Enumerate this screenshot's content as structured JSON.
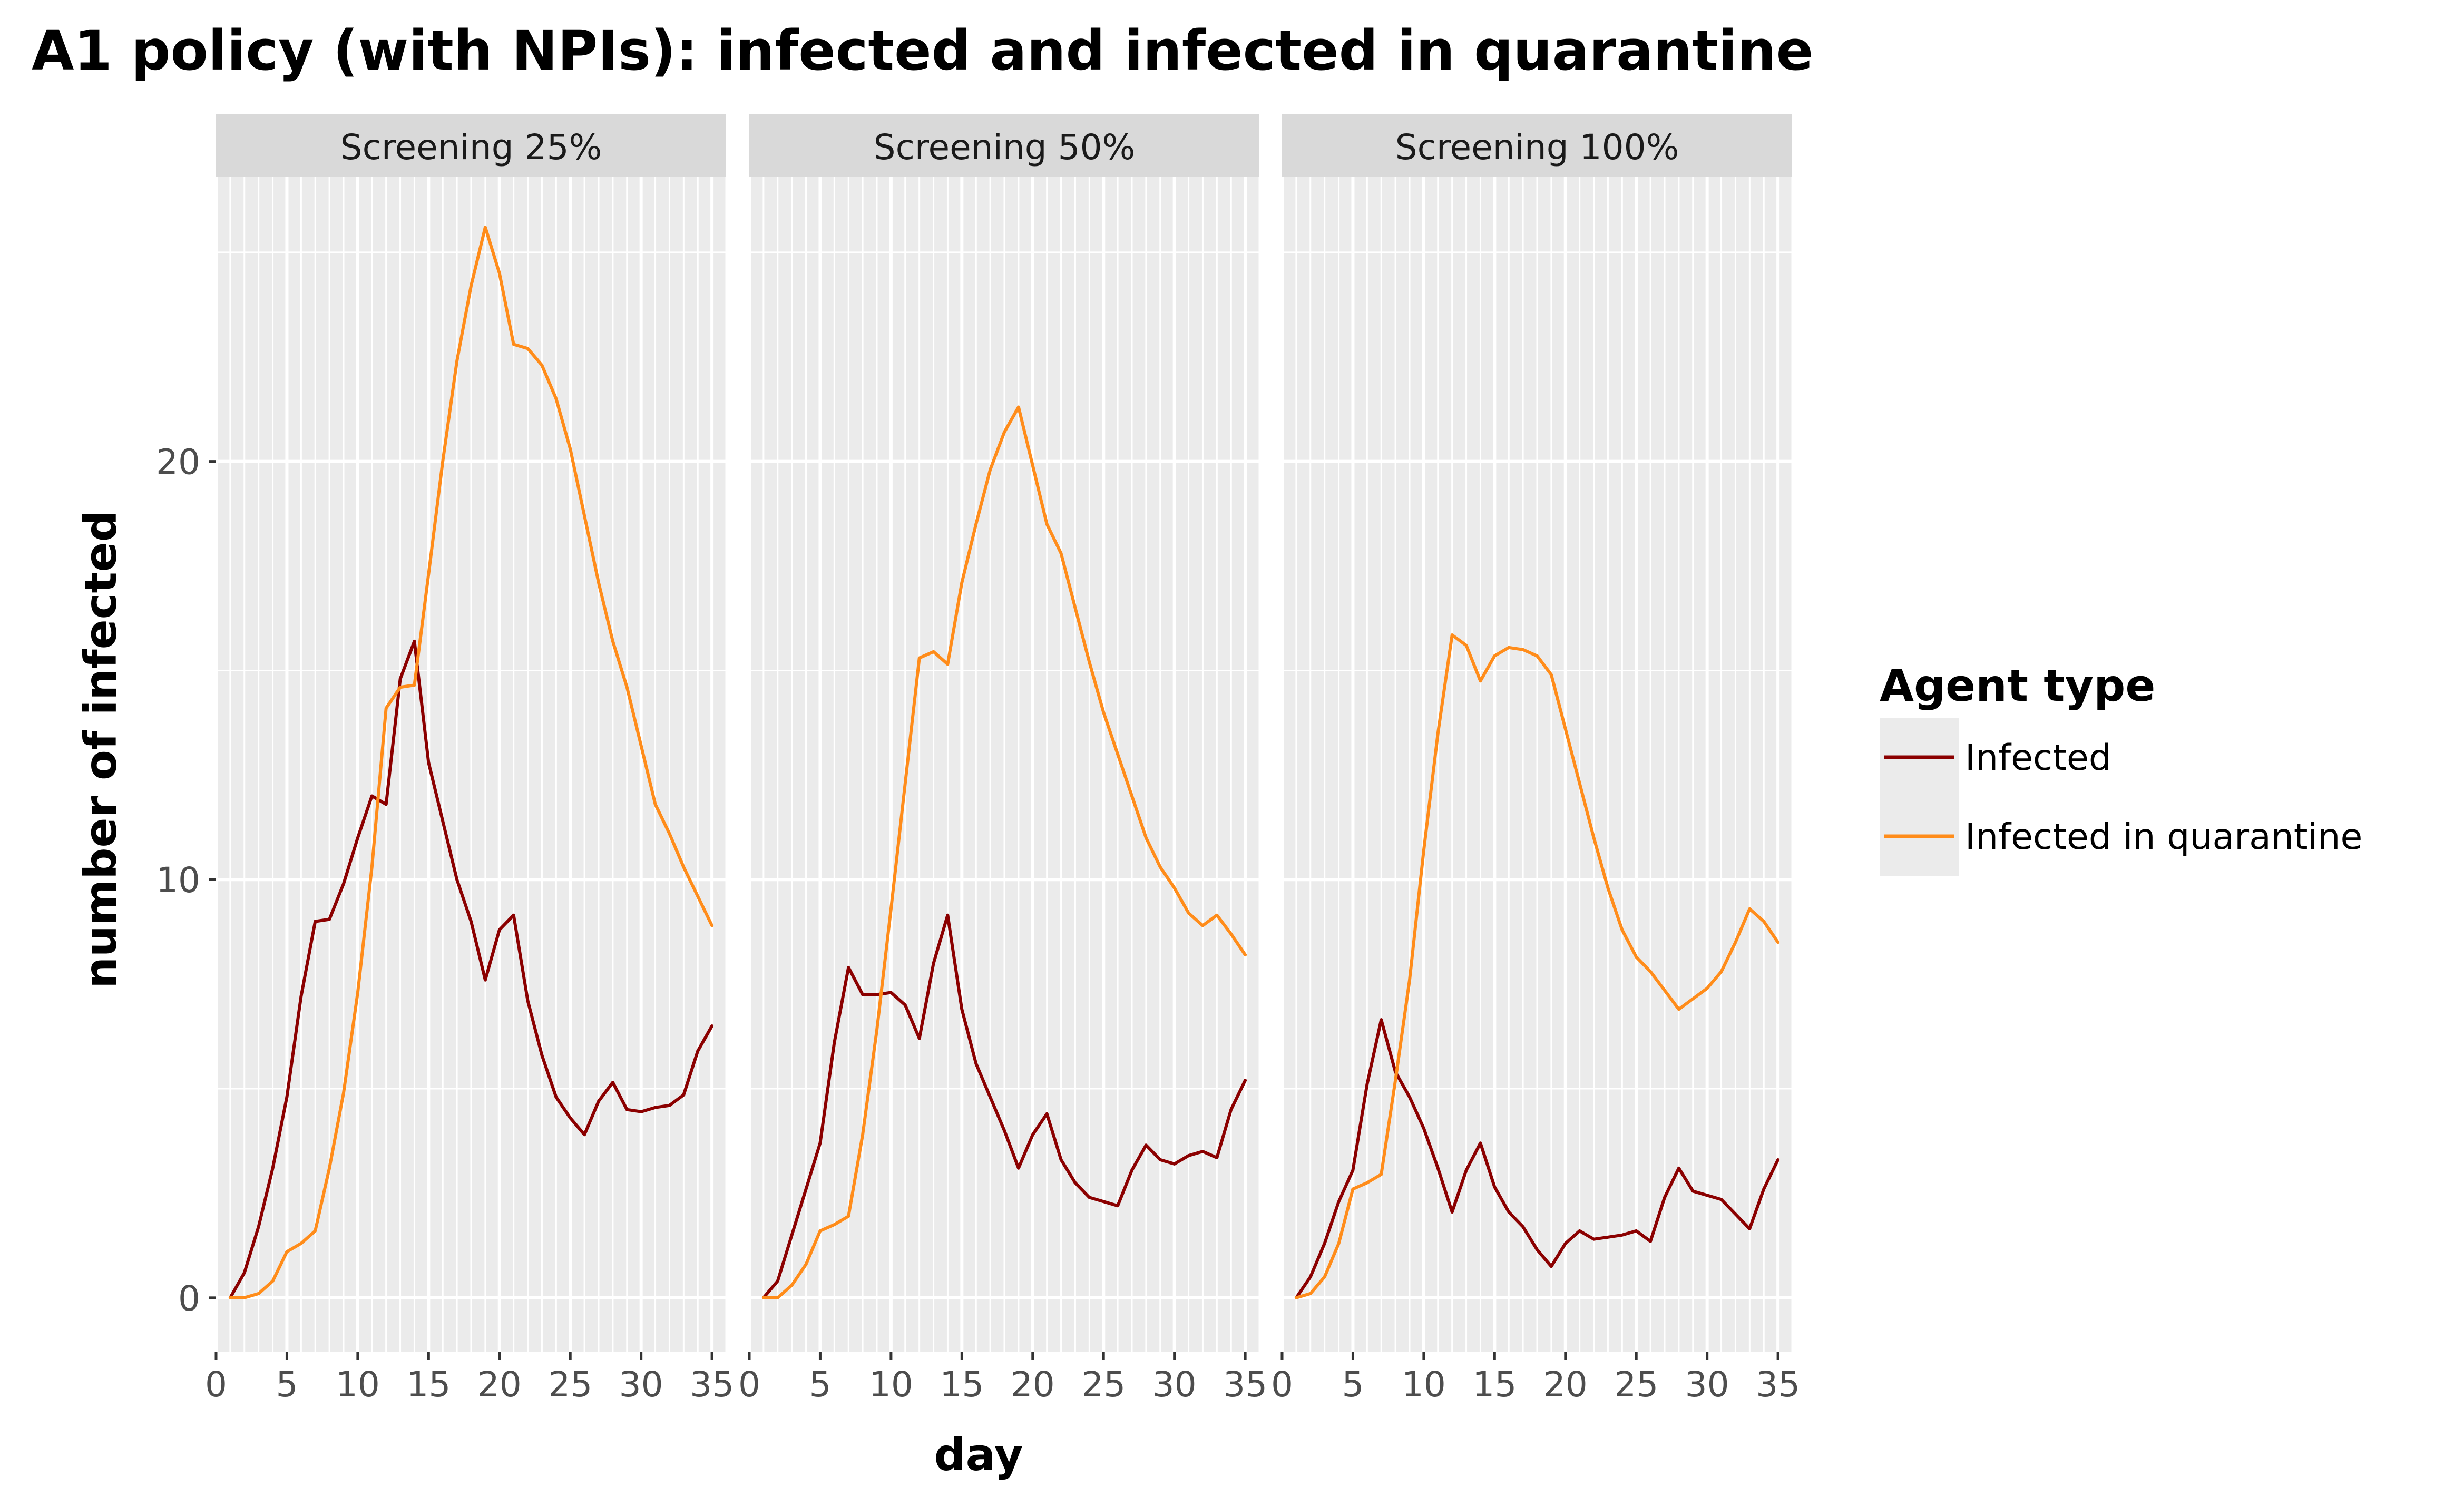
{
  "chart_data": {
    "type": "line",
    "title": "A1 policy (with NPIs): infected and infected in quarantine",
    "xlabel": "day",
    "ylabel": "number of infected",
    "xlim": [
      0,
      36
    ],
    "ylim": [
      -1.3,
      26.8
    ],
    "x_ticks": [
      0,
      5,
      10,
      15,
      20,
      25,
      30,
      35
    ],
    "y_ticks": [
      0,
      10,
      20
    ],
    "grid": true,
    "legend": {
      "title": "Agent type",
      "position": "right",
      "entries": [
        {
          "label": "Infected",
          "color": "#8b0000"
        },
        {
          "label": "Infected in quarantine",
          "color": "#ff8c1a"
        }
      ]
    },
    "panels": [
      {
        "label": "Screening 25%",
        "series": [
          {
            "name": "Infected",
            "color": "#8b0000",
            "x": [
              1,
              2,
              3,
              4,
              5,
              6,
              7,
              8,
              9,
              10,
              11,
              12,
              13,
              14,
              15,
              16,
              17,
              18,
              19,
              20,
              21,
              22,
              23,
              24,
              25,
              26,
              27,
              28,
              29,
              30,
              31,
              32,
              33,
              34,
              35
            ],
            "y": [
              0,
              0.6,
              1.7,
              3.1,
              4.8,
              7.2,
              9,
              9.05,
              9.9,
              11,
              12,
              11.8,
              14.8,
              15.7,
              12.8,
              11.4,
              10,
              9,
              7.6,
              8.8,
              9.15,
              7.1,
              5.8,
              4.8,
              4.3,
              3.9,
              4.7,
              5.15,
              4.5,
              4.45,
              4.55,
              4.6,
              4.85,
              5.9,
              6.5
            ]
          },
          {
            "name": "Infected in quarantine",
            "color": "#ff8c1a",
            "x": [
              1,
              2,
              3,
              4,
              5,
              6,
              7,
              8,
              9,
              10,
              11,
              12,
              13,
              14,
              15,
              16,
              17,
              18,
              19,
              20,
              21,
              22,
              23,
              24,
              25,
              26,
              27,
              28,
              29,
              30,
              31,
              32,
              33,
              34,
              35
            ],
            "y": [
              0,
              0,
              0.1,
              0.4,
              1.1,
              1.3,
              1.6,
              3.1,
              4.9,
              7.3,
              10.3,
              14.1,
              14.6,
              14.65,
              17.3,
              20,
              22.4,
              24.2,
              25.6,
              24.5,
              22.8,
              22.7,
              22.3,
              21.5,
              20.3,
              18.7,
              17.1,
              15.7,
              14.6,
              13.2,
              11.8,
              11.1,
              10.3,
              9.6,
              8.9
            ]
          }
        ]
      },
      {
        "label": "Screening 50%",
        "series": [
          {
            "name": "Infected",
            "color": "#8b0000",
            "x": [
              1,
              2,
              3,
              4,
              5,
              6,
              7,
              8,
              9,
              10,
              11,
              12,
              13,
              14,
              15,
              16,
              17,
              18,
              19,
              20,
              21,
              22,
              23,
              24,
              25,
              26,
              27,
              28,
              29,
              30,
              31,
              32,
              33,
              34,
              35
            ],
            "y": [
              0,
              0.4,
              1.5,
              2.6,
              3.7,
              6.1,
              7.9,
              7.25,
              7.25,
              7.3,
              7,
              6.2,
              8,
              9.15,
              6.9,
              5.6,
              4.8,
              4,
              3.1,
              3.9,
              4.4,
              3.3,
              2.75,
              2.4,
              2.3,
              2.2,
              3.05,
              3.65,
              3.3,
              3.2,
              3.4,
              3.5,
              3.35,
              4.5,
              5.2
            ]
          },
          {
            "name": "Infected in quarantine",
            "color": "#ff8c1a",
            "x": [
              1,
              2,
              3,
              4,
              5,
              6,
              7,
              8,
              9,
              10,
              11,
              12,
              13,
              14,
              15,
              16,
              17,
              18,
              19,
              20,
              21,
              22,
              23,
              24,
              25,
              26,
              27,
              28,
              29,
              30,
              31,
              32,
              33,
              34,
              35
            ],
            "y": [
              0,
              0,
              0.3,
              0.8,
              1.6,
              1.75,
              1.95,
              3.9,
              6.4,
              9.3,
              12.3,
              15.3,
              15.45,
              15.15,
              17.1,
              18.5,
              19.8,
              20.7,
              21.3,
              19.9,
              18.5,
              17.8,
              16.5,
              15.2,
              14,
              13,
              12,
              11,
              10.3,
              9.8,
              9.2,
              8.9,
              9.15,
              8.7,
              8.2
            ]
          }
        ]
      },
      {
        "label": "Screening 100%",
        "series": [
          {
            "name": "Infected",
            "color": "#8b0000",
            "x": [
              1,
              2,
              3,
              4,
              5,
              6,
              7,
              8,
              9,
              10,
              11,
              12,
              13,
              14,
              15,
              16,
              17,
              18,
              19,
              20,
              21,
              22,
              23,
              24,
              25,
              26,
              27,
              28,
              29,
              30,
              31,
              32,
              33,
              34,
              35
            ],
            "y": [
              0,
              0.5,
              1.3,
              2.3,
              3.05,
              5.1,
              6.65,
              5.4,
              4.8,
              4.05,
              3.1,
              2.05,
              3.05,
              3.7,
              2.65,
              2.05,
              1.7,
              1.15,
              0.75,
              1.3,
              1.6,
              1.4,
              1.45,
              1.5,
              1.6,
              1.35,
              2.4,
              3.1,
              2.55,
              2.45,
              2.35,
              2,
              1.65,
              2.6,
              3.3
            ]
          },
          {
            "name": "Infected in quarantine",
            "color": "#ff8c1a",
            "x": [
              1,
              2,
              3,
              4,
              5,
              6,
              7,
              8,
              9,
              10,
              11,
              12,
              13,
              14,
              15,
              16,
              17,
              18,
              19,
              20,
              21,
              22,
              23,
              24,
              25,
              26,
              27,
              28,
              29,
              30,
              31,
              32,
              33,
              34,
              35
            ],
            "y": [
              0,
              0.1,
              0.5,
              1.3,
              2.6,
              2.75,
              2.95,
              5.2,
              7.6,
              10.7,
              13.5,
              15.85,
              15.6,
              14.75,
              15.35,
              15.55,
              15.5,
              15.35,
              14.9,
              13.6,
              12.3,
              11,
              9.8,
              8.8,
              8.15,
              7.8,
              7.35,
              6.9,
              7.15,
              7.4,
              7.8,
              8.5,
              9.3,
              9,
              8.5
            ]
          }
        ]
      }
    ]
  }
}
